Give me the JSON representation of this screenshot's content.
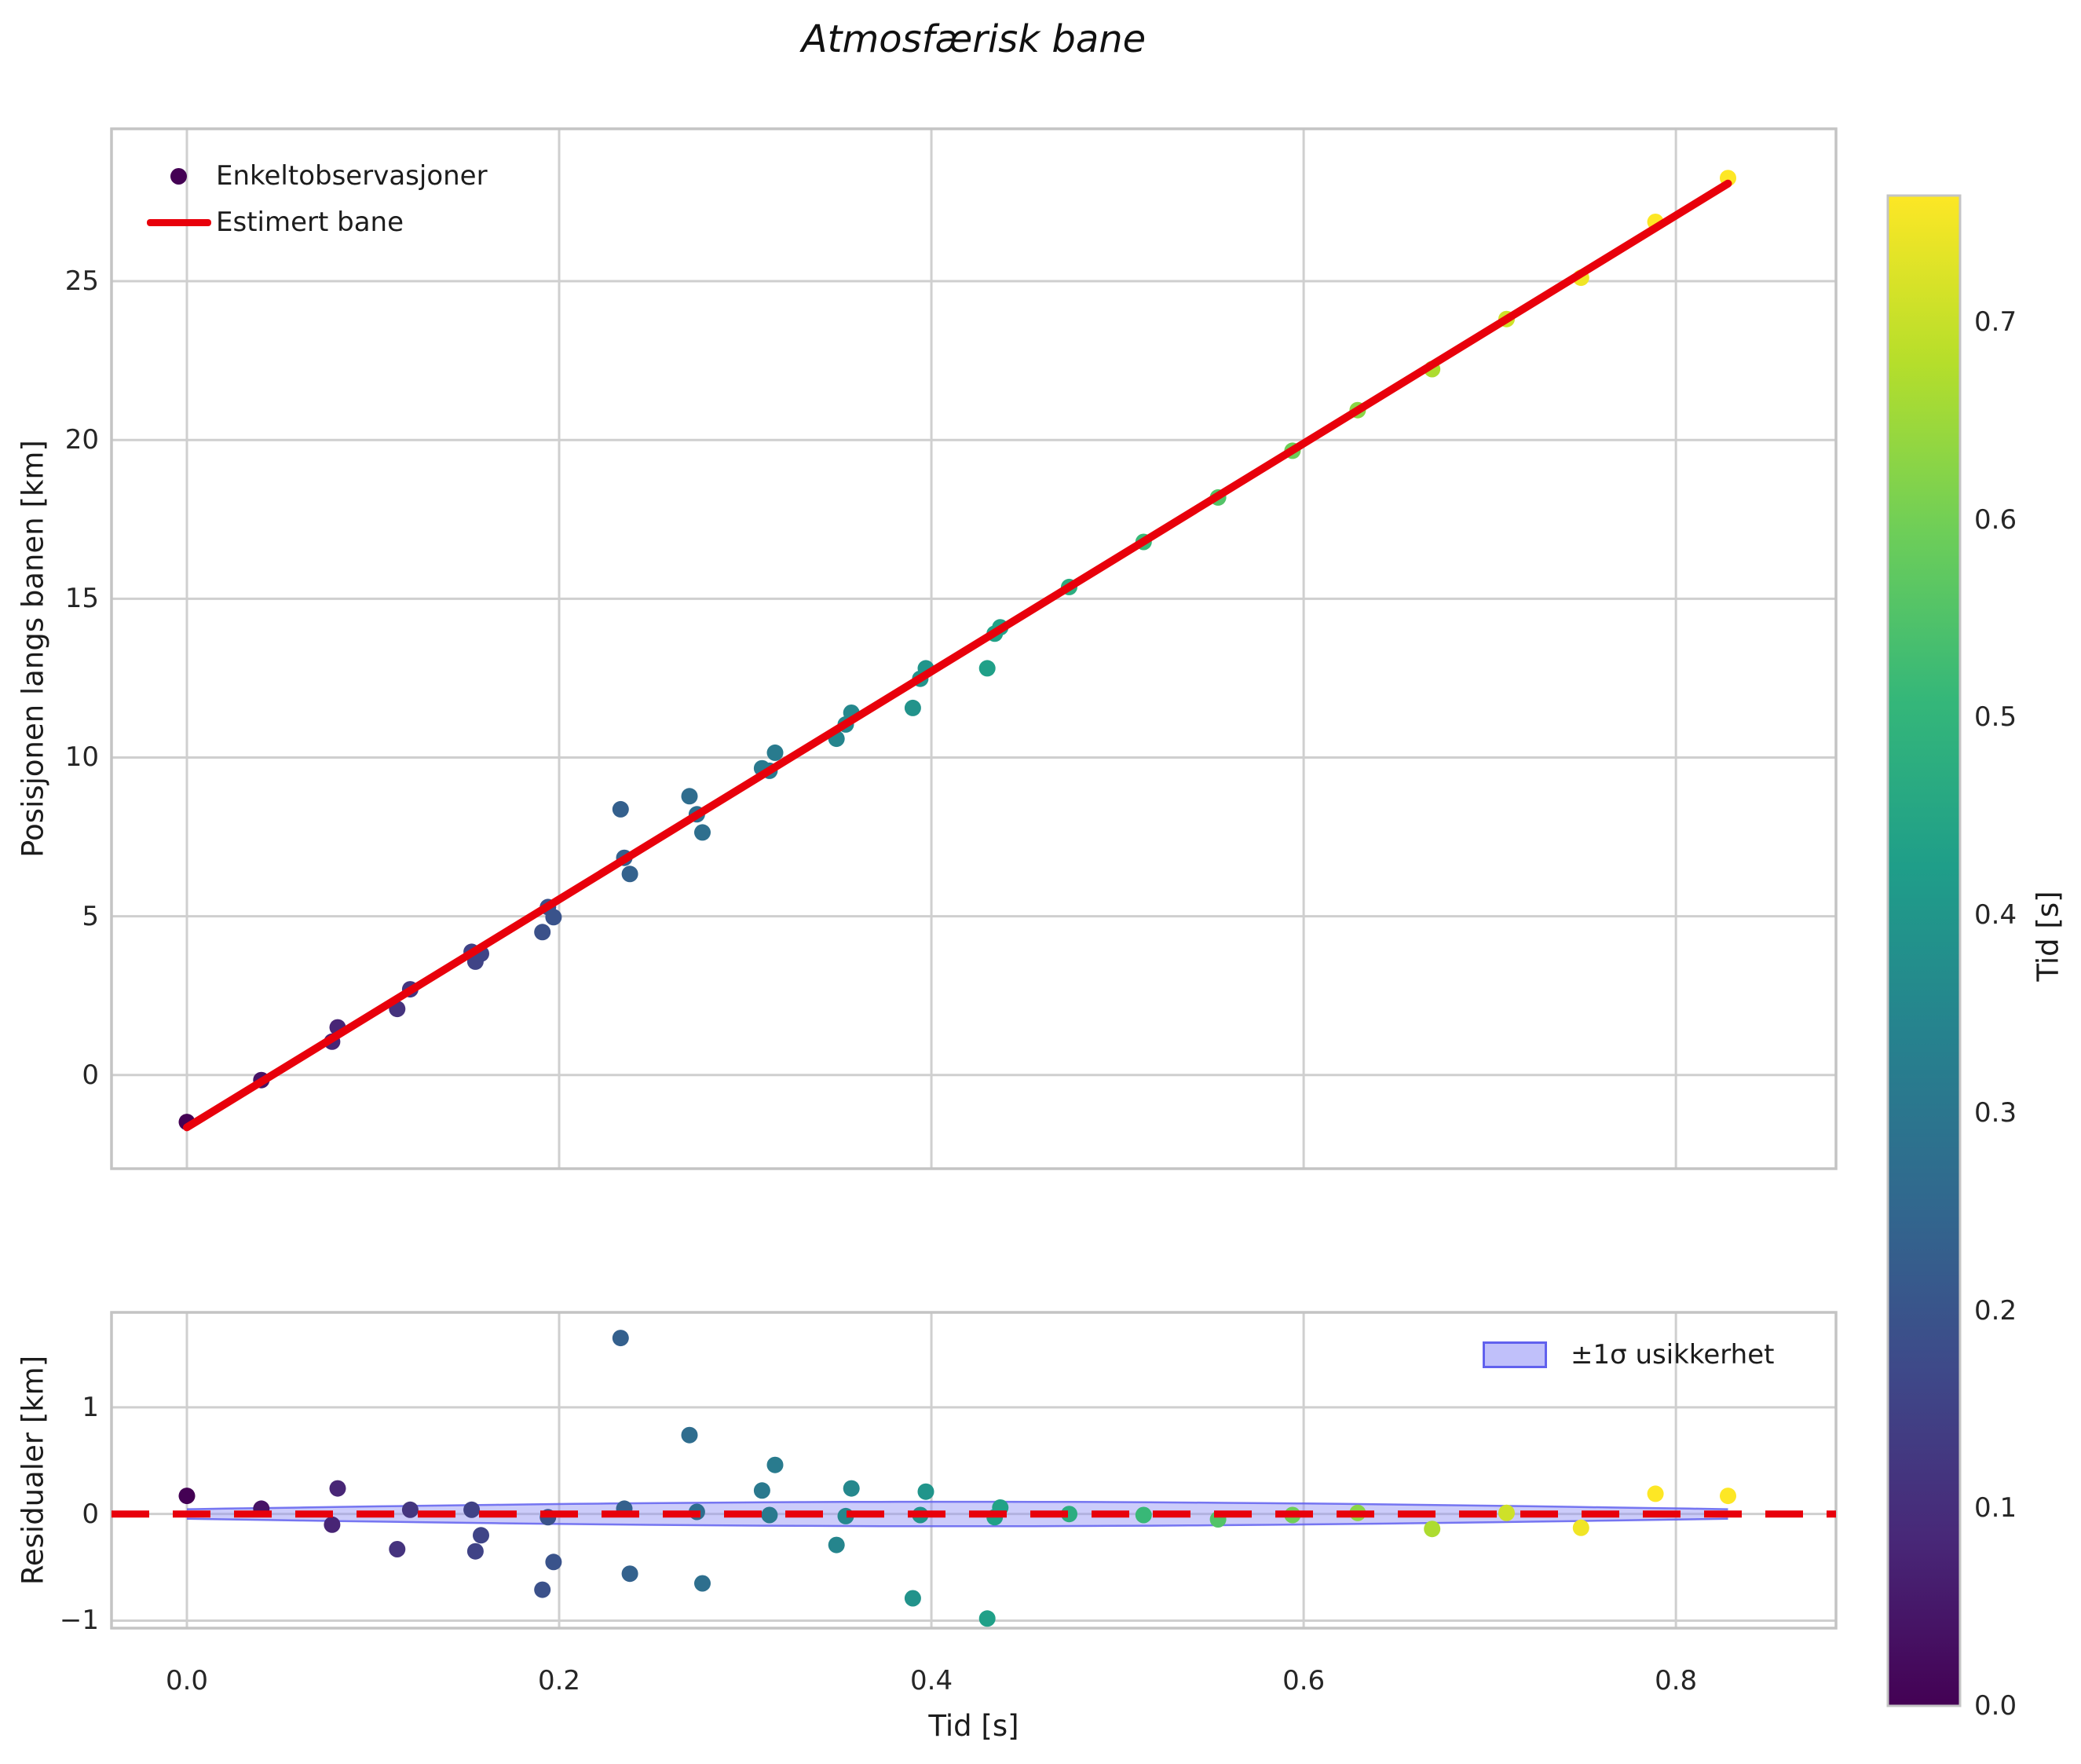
{
  "title": "Atmosfærisk bane",
  "axes": {
    "xlabel": "Tid [s]",
    "xtick_labels": [
      "0.0",
      "0.2",
      "0.4",
      "0.6",
      "0.8"
    ],
    "xtick_values": [
      0.0,
      0.2,
      0.4,
      0.6,
      0.8
    ],
    "xlim": [
      -0.0405,
      0.886
    ],
    "top": {
      "ylabel": "Posisjonen langs banen [km]",
      "ytick_labels": [
        "0",
        "5",
        "10",
        "15",
        "20",
        "25"
      ],
      "ytick_values": [
        0,
        5,
        10,
        15,
        20,
        25
      ],
      "ylim": [
        -2.95,
        29.8
      ],
      "legend": {
        "scatter_label": "Enkeltobservasjoner",
        "line_label": "Estimert bane"
      }
    },
    "bottom": {
      "ylabel": "Residualer [km]",
      "ytick_labels": [
        "−1",
        "0",
        "1"
      ],
      "ytick_values": [
        -1,
        0,
        1
      ],
      "ylim": [
        -1.07,
        1.89
      ],
      "legend": {
        "band_label": "±1σ usikkerhet"
      }
    }
  },
  "colorbar": {
    "label": "Tid [s]",
    "tick_labels": [
      "0.0",
      "0.1",
      "0.2",
      "0.3",
      "0.4",
      "0.5",
      "0.6",
      "0.7"
    ],
    "tick_values": [
      0.0,
      0.1,
      0.2,
      0.3,
      0.4,
      0.5,
      0.6,
      0.7
    ],
    "vmin": 0.0,
    "vmax": 0.764,
    "colormap": "viridis"
  },
  "colors": {
    "fit_line": "#e8000b",
    "band_fill": "#8d8df5",
    "band_edge": "#6161ee",
    "grid": "#cfcfcf",
    "frame": "#c4c4c4",
    "legend_dot": "#440154",
    "viridis_stops": [
      "#440154",
      "#482878",
      "#3e4989",
      "#31688e",
      "#26828e",
      "#1f9e89",
      "#35b779",
      "#6ece58",
      "#b5de2b",
      "#fde725"
    ]
  },
  "chart_data": [
    {
      "type": "scatter",
      "name": "trajectory",
      "title": "Atmosfærisk bane",
      "xlabel": "Tid [s]",
      "ylabel": "Posisjonen langs banen [km]",
      "legend_entries": [
        "Enkeltobservasjoner",
        "Estimert bane"
      ],
      "color_encoding": "Tid [s] (viridis)",
      "xlim": [
        -0.0405,
        0.886
      ],
      "ylim": [
        -2.95,
        29.8
      ],
      "grid": true,
      "x": [
        0.0,
        0.04,
        0.078,
        0.081,
        0.113,
        0.12,
        0.153,
        0.155,
        0.158,
        0.191,
        0.194,
        0.197,
        0.233,
        0.235,
        0.238,
        0.27,
        0.274,
        0.277,
        0.309,
        0.313,
        0.316,
        0.349,
        0.354,
        0.357,
        0.39,
        0.394,
        0.397,
        0.43,
        0.434,
        0.437,
        0.474,
        0.514,
        0.554,
        0.594,
        0.629,
        0.669,
        0.709,
        0.749,
        0.789,
        0.828
      ],
      "y": [
        -1.48,
        -0.16,
        1.05,
        1.5,
        2.08,
        2.7,
        3.88,
        3.57,
        3.82,
        4.5,
        5.29,
        4.97,
        8.37,
        6.84,
        6.33,
        8.78,
        8.21,
        7.64,
        9.66,
        9.58,
        10.15,
        10.59,
        11.04,
        11.41,
        11.56,
        12.48,
        12.81,
        12.81,
        13.9,
        14.1,
        15.37,
        16.79,
        18.19,
        19.66,
        20.94,
        22.23,
        23.81,
        25.11,
        26.87,
        28.25
      ],
      "fit_line": {
        "label": "Estimert bane",
        "slope": 35.9,
        "intercept": -1.65,
        "x_start": 0.0,
        "x_end": 0.828
      }
    },
    {
      "type": "scatter",
      "name": "residuals",
      "ylabel": "Residualer [km]",
      "xlim": [
        -0.0405,
        0.886
      ],
      "ylim": [
        -1.07,
        1.89
      ],
      "grid": true,
      "x": [
        0.0,
        0.04,
        0.078,
        0.081,
        0.113,
        0.12,
        0.153,
        0.155,
        0.158,
        0.191,
        0.194,
        0.197,
        0.233,
        0.235,
        0.238,
        0.27,
        0.274,
        0.277,
        0.309,
        0.313,
        0.316,
        0.349,
        0.354,
        0.357,
        0.39,
        0.394,
        0.397,
        0.43,
        0.434,
        0.437,
        0.474,
        0.514,
        0.554,
        0.594,
        0.629,
        0.669,
        0.709,
        0.749,
        0.789,
        0.828
      ],
      "y": [
        0.17,
        0.05,
        -0.1,
        0.24,
        -0.33,
        0.04,
        0.04,
        -0.35,
        -0.2,
        -0.71,
        -0.03,
        -0.45,
        1.65,
        0.05,
        -0.56,
        0.74,
        0.02,
        -0.65,
        0.22,
        -0.01,
        0.46,
        -0.29,
        -0.02,
        0.24,
        -0.79,
        -0.01,
        0.21,
        -0.98,
        -0.03,
        0.06,
        0.0,
        -0.01,
        -0.05,
        -0.01,
        0.01,
        -0.14,
        0.01,
        -0.13,
        0.19,
        0.17
      ],
      "zero_line": {
        "style": "dashed",
        "y": 0
      },
      "band": {
        "label": "±1σ usikkerhet",
        "x_start": 0.0,
        "x_end": 0.828,
        "sigma_edge": 0.045,
        "sigma_mid": 0.115
      }
    }
  ]
}
